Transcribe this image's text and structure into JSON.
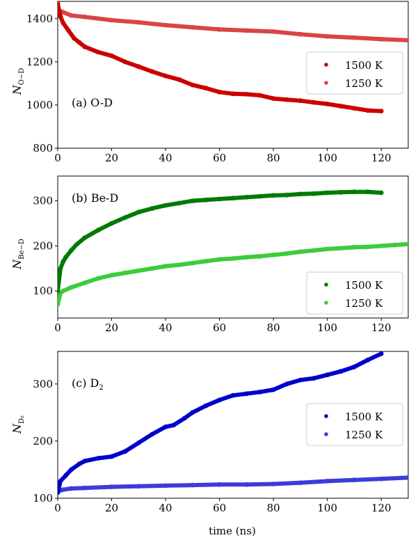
{
  "xlabel": "time (ns)",
  "colors": {
    "od_1500": "#cc0000",
    "od_1250": "#d84545",
    "bed_1500": "#007a00",
    "bed_1250": "#3ccc3c",
    "d2_1500": "#0000cc",
    "d2_1250": "#3c3cdc"
  },
  "chart_data": [
    {
      "type": "scatter",
      "id": "od",
      "annotation": "(a) O-D",
      "ylabel_main": "N",
      "ylabel_sub": "O−D",
      "xlim": [
        0,
        130
      ],
      "ylim": [
        800,
        1480
      ],
      "xticks": [
        "0",
        "20",
        "40",
        "60",
        "80",
        "100",
        "120"
      ],
      "yticks": [
        "800",
        "1000",
        "1200",
        "1400"
      ],
      "legend_position": "right",
      "series": [
        {
          "name": "1500 K",
          "color": "#cc0000",
          "points": [
            [
              0,
              1470
            ],
            [
              1,
              1410
            ],
            [
              2,
              1380
            ],
            [
              4,
              1345
            ],
            [
              6,
              1310
            ],
            [
              8,
              1290
            ],
            [
              10,
              1270
            ],
            [
              15,
              1245
            ],
            [
              20,
              1228
            ],
            [
              25,
              1200
            ],
            [
              30,
              1178
            ],
            [
              35,
              1155
            ],
            [
              40,
              1135
            ],
            [
              45,
              1118
            ],
            [
              50,
              1093
            ],
            [
              55,
              1078
            ],
            [
              60,
              1060
            ],
            [
              65,
              1052
            ],
            [
              70,
              1050
            ],
            [
              75,
              1045
            ],
            [
              80,
              1030
            ],
            [
              85,
              1025
            ],
            [
              90,
              1020
            ],
            [
              95,
              1012
            ],
            [
              100,
              1005
            ],
            [
              105,
              995
            ],
            [
              110,
              985
            ],
            [
              115,
              975
            ],
            [
              120,
              972
            ]
          ]
        },
        {
          "name": "1250 K",
          "color": "#d84545",
          "points": [
            [
              0,
              1440
            ],
            [
              2,
              1430
            ],
            [
              5,
              1415
            ],
            [
              10,
              1408
            ],
            [
              20,
              1393
            ],
            [
              30,
              1383
            ],
            [
              40,
              1370
            ],
            [
              50,
              1360
            ],
            [
              60,
              1350
            ],
            [
              70,
              1345
            ],
            [
              80,
              1340
            ],
            [
              90,
              1328
            ],
            [
              100,
              1318
            ],
            [
              110,
              1312
            ],
            [
              120,
              1305
            ],
            [
              130,
              1300
            ]
          ]
        }
      ]
    },
    {
      "type": "scatter",
      "id": "bed",
      "annotation": "(b) Be-D",
      "ylabel_main": "N",
      "ylabel_sub": "Be−D",
      "xlim": [
        0,
        130
      ],
      "ylim": [
        40,
        355
      ],
      "xticks": [
        "0",
        "20",
        "40",
        "60",
        "80",
        "100",
        "120"
      ],
      "yticks": [
        "100",
        "200",
        "300"
      ],
      "legend_position": "right",
      "series": [
        {
          "name": "1500 K",
          "color": "#007a00",
          "points": [
            [
              0,
              100
            ],
            [
              1,
              150
            ],
            [
              2,
              165
            ],
            [
              3,
              175
            ],
            [
              5,
              190
            ],
            [
              7,
              203
            ],
            [
              10,
              218
            ],
            [
              15,
              235
            ],
            [
              20,
              250
            ],
            [
              25,
              263
            ],
            [
              30,
              275
            ],
            [
              35,
              283
            ],
            [
              40,
              290
            ],
            [
              45,
              295
            ],
            [
              50,
              300
            ],
            [
              55,
              302
            ],
            [
              60,
              304
            ],
            [
              65,
              306
            ],
            [
              70,
              308
            ],
            [
              75,
              310
            ],
            [
              80,
              312
            ],
            [
              85,
              313
            ],
            [
              90,
              315
            ],
            [
              95,
              316
            ],
            [
              100,
              318
            ],
            [
              105,
              319
            ],
            [
              110,
              320
            ],
            [
              115,
              320
            ],
            [
              120,
              318
            ]
          ]
        },
        {
          "name": "1250 K",
          "color": "#3ccc3c",
          "points": [
            [
              0,
              70
            ],
            [
              1,
              95
            ],
            [
              2,
              100
            ],
            [
              5,
              108
            ],
            [
              10,
              118
            ],
            [
              15,
              128
            ],
            [
              20,
              135
            ],
            [
              25,
              140
            ],
            [
              30,
              145
            ],
            [
              35,
              150
            ],
            [
              40,
              155
            ],
            [
              45,
              158
            ],
            [
              50,
              162
            ],
            [
              55,
              166
            ],
            [
              60,
              170
            ],
            [
              65,
              172
            ],
            [
              70,
              175
            ],
            [
              75,
              177
            ],
            [
              80,
              180
            ],
            [
              85,
              183
            ],
            [
              90,
              187
            ],
            [
              95,
              190
            ],
            [
              100,
              193
            ],
            [
              105,
              195
            ],
            [
              110,
              197
            ],
            [
              115,
              198
            ],
            [
              120,
              200
            ],
            [
              125,
              202
            ],
            [
              130,
              204
            ]
          ]
        }
      ]
    },
    {
      "type": "scatter",
      "id": "d2",
      "annotation": "(c) D",
      "annotation_sub": "2",
      "ylabel_main": "N",
      "ylabel_sub": "D₂",
      "xlim": [
        0,
        130
      ],
      "ylim": [
        100,
        357
      ],
      "xticks": [
        "0",
        "20",
        "40",
        "60",
        "80",
        "100",
        "120"
      ],
      "yticks": [
        "100",
        "200",
        "300"
      ],
      "legend_position": "right",
      "series": [
        {
          "name": "1500 K",
          "color": "#0000cc",
          "points": [
            [
              0,
              110
            ],
            [
              1,
              130
            ],
            [
              3,
              140
            ],
            [
              5,
              150
            ],
            [
              8,
              160
            ],
            [
              10,
              165
            ],
            [
              15,
              170
            ],
            [
              20,
              173
            ],
            [
              25,
              182
            ],
            [
              30,
              197
            ],
            [
              35,
              212
            ],
            [
              40,
              225
            ],
            [
              43,
              228
            ],
            [
              47,
              240
            ],
            [
              50,
              250
            ],
            [
              55,
              262
            ],
            [
              60,
              272
            ],
            [
              65,
              280
            ],
            [
              70,
              283
            ],
            [
              75,
              286
            ],
            [
              80,
              290
            ],
            [
              85,
              300
            ],
            [
              90,
              307
            ],
            [
              95,
              310
            ],
            [
              100,
              316
            ],
            [
              105,
              322
            ],
            [
              110,
              330
            ],
            [
              115,
              342
            ],
            [
              120,
              353
            ]
          ]
        },
        {
          "name": "1250 K",
          "color": "#3c3cdc",
          "points": [
            [
              0,
              112
            ],
            [
              2,
              115
            ],
            [
              5,
              117
            ],
            [
              10,
              118
            ],
            [
              20,
              120
            ],
            [
              30,
              121
            ],
            [
              40,
              122
            ],
            [
              50,
              123
            ],
            [
              60,
              124
            ],
            [
              70,
              124
            ],
            [
              80,
              125
            ],
            [
              90,
              127
            ],
            [
              100,
              130
            ],
            [
              110,
              132
            ],
            [
              120,
              134
            ],
            [
              130,
              136
            ]
          ]
        }
      ]
    }
  ]
}
